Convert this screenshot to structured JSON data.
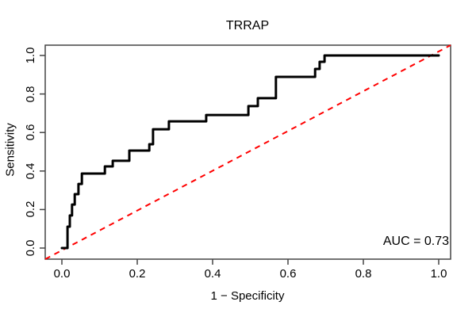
{
  "chart_data": {
    "type": "line",
    "subtype": "roc-step-curve",
    "title": "TRRAP",
    "xlabel": "1 − Specificity",
    "ylabel": "Sensitivity",
    "auc_text": "AUC = 0.73",
    "auc": 0.73,
    "xlim": [
      0,
      1
    ],
    "ylim": [
      0,
      1
    ],
    "x_ticks": [
      "0.0",
      "0.2",
      "0.4",
      "0.6",
      "0.8",
      "1.0"
    ],
    "y_ticks": [
      "0.0",
      "0.2",
      "0.4",
      "0.6",
      "0.8",
      "1.0"
    ],
    "grid": false,
    "legend": "none",
    "colors": {
      "roc_curve": "#000000",
      "diagonal": "#ff0000",
      "axis": "#444444",
      "text": "#000000",
      "background": "#ffffff"
    },
    "series": [
      {
        "name": "ROC curve (TRRAP)",
        "type": "step",
        "color": "#000000",
        "points": [
          [
            0.0,
            0.0
          ],
          [
            0.015,
            0.0
          ],
          [
            0.015,
            0.111
          ],
          [
            0.021,
            0.111
          ],
          [
            0.021,
            0.169
          ],
          [
            0.027,
            0.169
          ],
          [
            0.027,
            0.226
          ],
          [
            0.034,
            0.226
          ],
          [
            0.034,
            0.28
          ],
          [
            0.044,
            0.28
          ],
          [
            0.044,
            0.333
          ],
          [
            0.053,
            0.333
          ],
          [
            0.053,
            0.387
          ],
          [
            0.114,
            0.387
          ],
          [
            0.114,
            0.424
          ],
          [
            0.135,
            0.424
          ],
          [
            0.135,
            0.453
          ],
          [
            0.179,
            0.453
          ],
          [
            0.179,
            0.506
          ],
          [
            0.232,
            0.506
          ],
          [
            0.232,
            0.539
          ],
          [
            0.242,
            0.539
          ],
          [
            0.242,
            0.617
          ],
          [
            0.284,
            0.617
          ],
          [
            0.284,
            0.658
          ],
          [
            0.383,
            0.658
          ],
          [
            0.383,
            0.691
          ],
          [
            0.495,
            0.691
          ],
          [
            0.495,
            0.737
          ],
          [
            0.52,
            0.737
          ],
          [
            0.52,
            0.778
          ],
          [
            0.568,
            0.778
          ],
          [
            0.568,
            0.889
          ],
          [
            0.672,
            0.889
          ],
          [
            0.672,
            0.93
          ],
          [
            0.684,
            0.93
          ],
          [
            0.684,
            0.967
          ],
          [
            0.697,
            0.967
          ],
          [
            0.697,
            1.0
          ],
          [
            1.0,
            1.0
          ]
        ]
      },
      {
        "name": "Chance diagonal",
        "type": "line",
        "style": "dashed",
        "color": "#ff0000",
        "points": [
          [
            0,
            0
          ],
          [
            1,
            1
          ]
        ]
      }
    ]
  }
}
